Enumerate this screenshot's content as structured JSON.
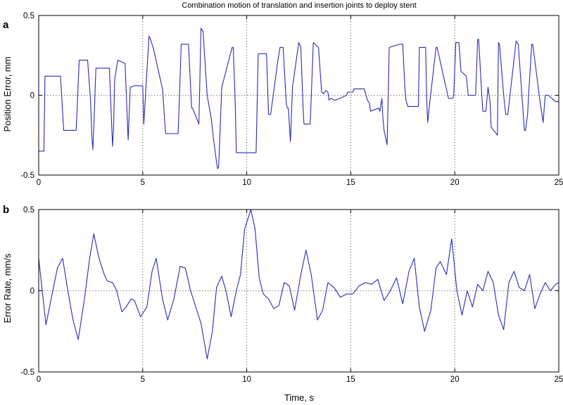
{
  "figure": {
    "title": "Combination motion of translation and insertion joints to deploy stent",
    "xlabel": "Time, s"
  },
  "chart_data": [
    {
      "type": "line",
      "panel": "a",
      "ylabel": "Position Error, mm",
      "xlim": [
        0,
        25
      ],
      "ylim": [
        -0.5,
        0.5
      ],
      "xticks": [
        0,
        5,
        10,
        15,
        20,
        25
      ],
      "yticks": [
        -0.5,
        0,
        0.5
      ],
      "ytick_labels": [
        "-0.5",
        "0",
        "0.5"
      ],
      "grid": true,
      "line_color": "#2b2bb5",
      "series": [
        {
          "x": [
            0,
            0.25,
            0.3,
            1.05,
            1.2,
            1.8,
            1.95,
            2.35,
            2.5,
            2.55,
            2.6,
            2.65,
            2.75,
            2.85,
            3.4,
            3.55,
            3.6,
            3.65,
            3.8,
            4.15,
            4.3,
            4.4,
            4.6,
            5.0,
            5.05,
            5.3,
            5.35,
            5.5,
            5.95,
            6.1,
            6.2,
            6.7,
            6.85,
            7.2,
            7.35,
            7.4,
            7.7,
            7.8,
            7.9,
            8.1,
            8.3,
            8.4,
            8.55,
            8.6,
            8.65,
            8.8,
            9.3,
            9.35,
            9.45,
            9.5,
            9.8,
            10.45,
            10.55,
            10.6,
            10.95,
            11.05,
            11.15,
            11.5,
            11.6,
            11.75,
            11.9,
            11.95,
            12.0,
            12.1,
            12.2,
            12.5,
            12.6,
            12.7,
            12.75,
            13.05,
            13.2,
            13.45,
            13.6,
            13.7,
            13.8,
            13.9,
            13.95,
            14.05,
            14.2,
            14.3,
            14.8,
            14.85,
            15.1,
            15.15,
            15.25,
            15.65,
            15.8,
            15.9,
            15.95,
            16.35,
            16.4,
            16.5,
            16.55,
            16.6,
            16.75,
            16.85,
            17.35,
            17.5,
            17.6,
            17.65,
            17.75,
            17.85,
            18.25,
            18.3,
            18.6,
            18.65,
            18.7,
            18.75,
            19.1,
            19.15,
            19.7,
            19.9,
            19.95,
            20.05,
            20.2,
            20.3,
            20.55,
            20.65,
            21.0,
            21.1,
            21.15,
            21.3,
            21.35,
            21.5,
            21.55,
            21.6,
            21.7,
            21.75,
            22.05,
            22.1,
            22.15,
            22.35,
            22.45,
            22.55,
            22.95,
            23.05,
            23.35,
            23.4,
            23.5,
            23.55,
            23.7,
            23.75,
            24.1,
            24.25,
            24.3,
            24.35,
            24.45,
            24.5,
            24.85,
            25.0
          ],
          "y": [
            -0.35,
            -0.35,
            0.12,
            0.12,
            -0.22,
            -0.22,
            0.22,
            0.22,
            -0.05,
            -0.25,
            -0.34,
            -0.2,
            0.17,
            0.17,
            0.17,
            -0.32,
            -0.2,
            0.1,
            0.22,
            0.2,
            -0.28,
            0.05,
            0.06,
            0.06,
            -0.18,
            0.37,
            0.36,
            0.3,
            0.04,
            -0.24,
            -0.24,
            -0.24,
            0.32,
            0.32,
            -0.08,
            -0.08,
            -0.18,
            0.42,
            0.4,
            0.0,
            -0.15,
            -0.27,
            -0.42,
            -0.46,
            -0.45,
            0.05,
            0.3,
            0.3,
            -0.05,
            -0.36,
            -0.36,
            -0.36,
            0.26,
            0.26,
            0.26,
            -0.12,
            -0.12,
            0.22,
            0.3,
            0.3,
            -0.05,
            -0.08,
            -0.08,
            -0.29,
            0.05,
            0.33,
            0.3,
            -0.05,
            -0.18,
            -0.18,
            0.33,
            0.3,
            0.02,
            0.01,
            0.03,
            0.02,
            -0.03,
            -0.02,
            -0.03,
            -0.03,
            0.0,
            0.02,
            0.02,
            0.04,
            0.04,
            0.04,
            -0.03,
            -0.05,
            -0.1,
            -0.08,
            -0.1,
            -0.02,
            -0.15,
            -0.22,
            -0.31,
            0.3,
            0.32,
            0.32,
            0.05,
            -0.03,
            -0.07,
            -0.07,
            -0.07,
            0.3,
            0.3,
            -0.03,
            -0.17,
            -0.1,
            0.3,
            0.3,
            -0.02,
            -0.02,
            0.0,
            0.33,
            0.33,
            0.15,
            0.12,
            0.0,
            0.0,
            0.35,
            0.35,
            0.0,
            -0.1,
            -0.1,
            -0.02,
            0.05,
            -0.05,
            -0.2,
            -0.25,
            0.33,
            0.32,
            0.0,
            -0.12,
            -0.12,
            0.34,
            0.32,
            -0.22,
            -0.22,
            -0.12,
            0.0,
            0.32,
            0.32,
            -0.04,
            -0.17,
            -0.08,
            0.0,
            0.0,
            0.0,
            -0.04,
            -0.04
          ]
        }
      ]
    },
    {
      "type": "line",
      "panel": "b",
      "ylabel": "Error Rate, mm/s",
      "xlabel": "Time, s",
      "xlim": [
        0,
        25
      ],
      "ylim": [
        -0.5,
        0.5
      ],
      "xticks": [
        0,
        5,
        10,
        15,
        20,
        25
      ],
      "yticks": [
        -0.5,
        0,
        0.5
      ],
      "ytick_labels": [
        "-0.5",
        "0",
        "0.5"
      ],
      "grid": true,
      "line_color": "#2b2bb5",
      "series": [
        {
          "x": [
            0,
            0.35,
            0.6,
            0.9,
            1.15,
            1.4,
            1.65,
            1.9,
            2.2,
            2.45,
            2.65,
            2.9,
            3.15,
            3.3,
            3.55,
            3.75,
            4.0,
            4.2,
            4.45,
            4.6,
            4.9,
            5.2,
            5.45,
            5.65,
            5.95,
            6.2,
            6.5,
            6.8,
            7.05,
            7.3,
            7.55,
            7.8,
            8.1,
            8.35,
            8.55,
            8.8,
            9.0,
            9.25,
            9.5,
            9.7,
            9.9,
            10.2,
            10.4,
            10.6,
            10.8,
            11.05,
            11.3,
            11.55,
            11.8,
            12.05,
            12.3,
            12.6,
            12.85,
            13.1,
            13.4,
            13.65,
            13.9,
            14.2,
            14.5,
            14.8,
            15.1,
            15.4,
            15.7,
            16.0,
            16.3,
            16.6,
            16.9,
            17.2,
            17.5,
            17.8,
            18.05,
            18.3,
            18.55,
            18.85,
            19.1,
            19.3,
            19.6,
            19.85,
            20.1,
            20.35,
            20.6,
            20.85,
            21.1,
            21.35,
            21.6,
            21.85,
            22.1,
            22.35,
            22.6,
            22.85,
            23.1,
            23.35,
            23.6,
            23.85,
            24.1,
            24.35,
            24.6,
            24.85,
            25.0
          ],
          "y": [
            0.2,
            -0.21,
            -0.05,
            0.14,
            0.2,
            0.0,
            -0.18,
            -0.3,
            -0.05,
            0.2,
            0.35,
            0.2,
            0.1,
            0.06,
            0.05,
            0.0,
            -0.13,
            -0.1,
            -0.05,
            -0.06,
            -0.16,
            -0.1,
            0.12,
            0.2,
            -0.05,
            -0.18,
            -0.05,
            0.15,
            0.14,
            0.0,
            -0.1,
            -0.2,
            -0.42,
            -0.25,
            0.02,
            0.09,
            0.0,
            -0.16,
            0.0,
            0.1,
            0.38,
            0.5,
            0.38,
            0.08,
            -0.02,
            -0.05,
            -0.11,
            -0.09,
            0.05,
            0.03,
            -0.12,
            0.1,
            0.25,
            0.1,
            -0.18,
            -0.12,
            0.05,
            0.02,
            -0.04,
            -0.02,
            -0.02,
            0.03,
            0.05,
            0.04,
            0.07,
            -0.06,
            0.0,
            0.08,
            -0.08,
            0.12,
            0.2,
            -0.1,
            -0.25,
            -0.12,
            0.14,
            0.18,
            0.1,
            0.32,
            0.0,
            -0.15,
            0.0,
            -0.1,
            0.04,
            0.0,
            0.12,
            0.05,
            -0.15,
            -0.24,
            0.05,
            0.12,
            0.02,
            0.0,
            0.1,
            -0.11,
            -0.02,
            0.05,
            0.0,
            0.04,
            0.05
          ]
        }
      ]
    }
  ],
  "panels": {
    "a": {
      "letter": "a",
      "ylabel": "Position Error, mm"
    },
    "b": {
      "letter": "b",
      "ylabel": "Error Rate, mm/s"
    }
  }
}
